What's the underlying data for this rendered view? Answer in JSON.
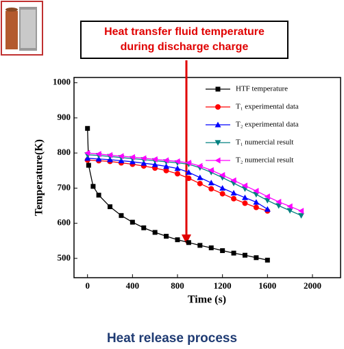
{
  "chart_data": {
    "type": "line",
    "title": "Heat transfer fluid temperature during discharge charge",
    "caption": "Heat release process",
    "x_label": "Time (s)",
    "y_label": "Temperature(K)",
    "xlim": [
      -120,
      2250
    ],
    "ylim": [
      445,
      1015
    ],
    "xticks": [
      0,
      400,
      800,
      1200,
      1600,
      2000
    ],
    "yticks": [
      500,
      600,
      700,
      800,
      900,
      1000
    ],
    "series": [
      {
        "name": "HTF temperature",
        "color": "#000000",
        "marker": "square",
        "x": [
          0,
          10,
          50,
          100,
          200,
          300,
          400,
          500,
          600,
          700,
          800,
          900,
          1000,
          1100,
          1200,
          1300,
          1400,
          1500,
          1600
        ],
        "values": [
          870,
          765,
          705,
          680,
          647,
          622,
          603,
          587,
          574,
          563,
          553,
          545,
          537,
          530,
          522,
          515,
          509,
          502,
          495
        ]
      },
      {
        "name": "T₁ experimental data",
        "color": "#ff0000",
        "marker": "circle",
        "x": [
          0,
          100,
          200,
          300,
          400,
          500,
          600,
          700,
          800,
          900,
          1000,
          1100,
          1200,
          1300,
          1400,
          1500,
          1600
        ],
        "values": [
          780,
          778,
          776,
          772,
          768,
          763,
          757,
          750,
          741,
          728,
          713,
          698,
          684,
          670,
          657,
          645,
          635
        ]
      },
      {
        "name": "T₂ experimental data",
        "color": "#0000ff",
        "marker": "up",
        "x": [
          0,
          100,
          200,
          300,
          400,
          500,
          600,
          700,
          800,
          900,
          1000,
          1100,
          1200,
          1300,
          1400,
          1500,
          1600
        ],
        "values": [
          785,
          783,
          781,
          778,
          775,
          771,
          767,
          762,
          756,
          745,
          730,
          715,
          700,
          686,
          673,
          660,
          640
        ]
      },
      {
        "name": "T₁ numercial result",
        "color": "#008080",
        "marker": "down",
        "x": [
          0,
          100,
          200,
          300,
          400,
          500,
          600,
          700,
          800,
          900,
          1000,
          1100,
          1200,
          1300,
          1400,
          1500,
          1600,
          1700,
          1800,
          1900
        ],
        "values": [
          795,
          793,
          790,
          787,
          784,
          781,
          778,
          775,
          772,
          768,
          758,
          745,
          730,
          714,
          698,
          682,
          665,
          650,
          636,
          622
        ]
      },
      {
        "name": "T₂ numercial result",
        "color": "#ff00ff",
        "marker": "left",
        "x": [
          0,
          100,
          200,
          300,
          400,
          500,
          600,
          700,
          800,
          900,
          1000,
          1100,
          1200,
          1300,
          1400,
          1500,
          1600,
          1700,
          1800,
          1900
        ],
        "values": [
          800,
          797,
          794,
          791,
          788,
          785,
          782,
          779,
          776,
          772,
          763,
          751,
          737,
          722,
          707,
          692,
          676,
          661,
          648,
          635
        ]
      }
    ]
  }
}
